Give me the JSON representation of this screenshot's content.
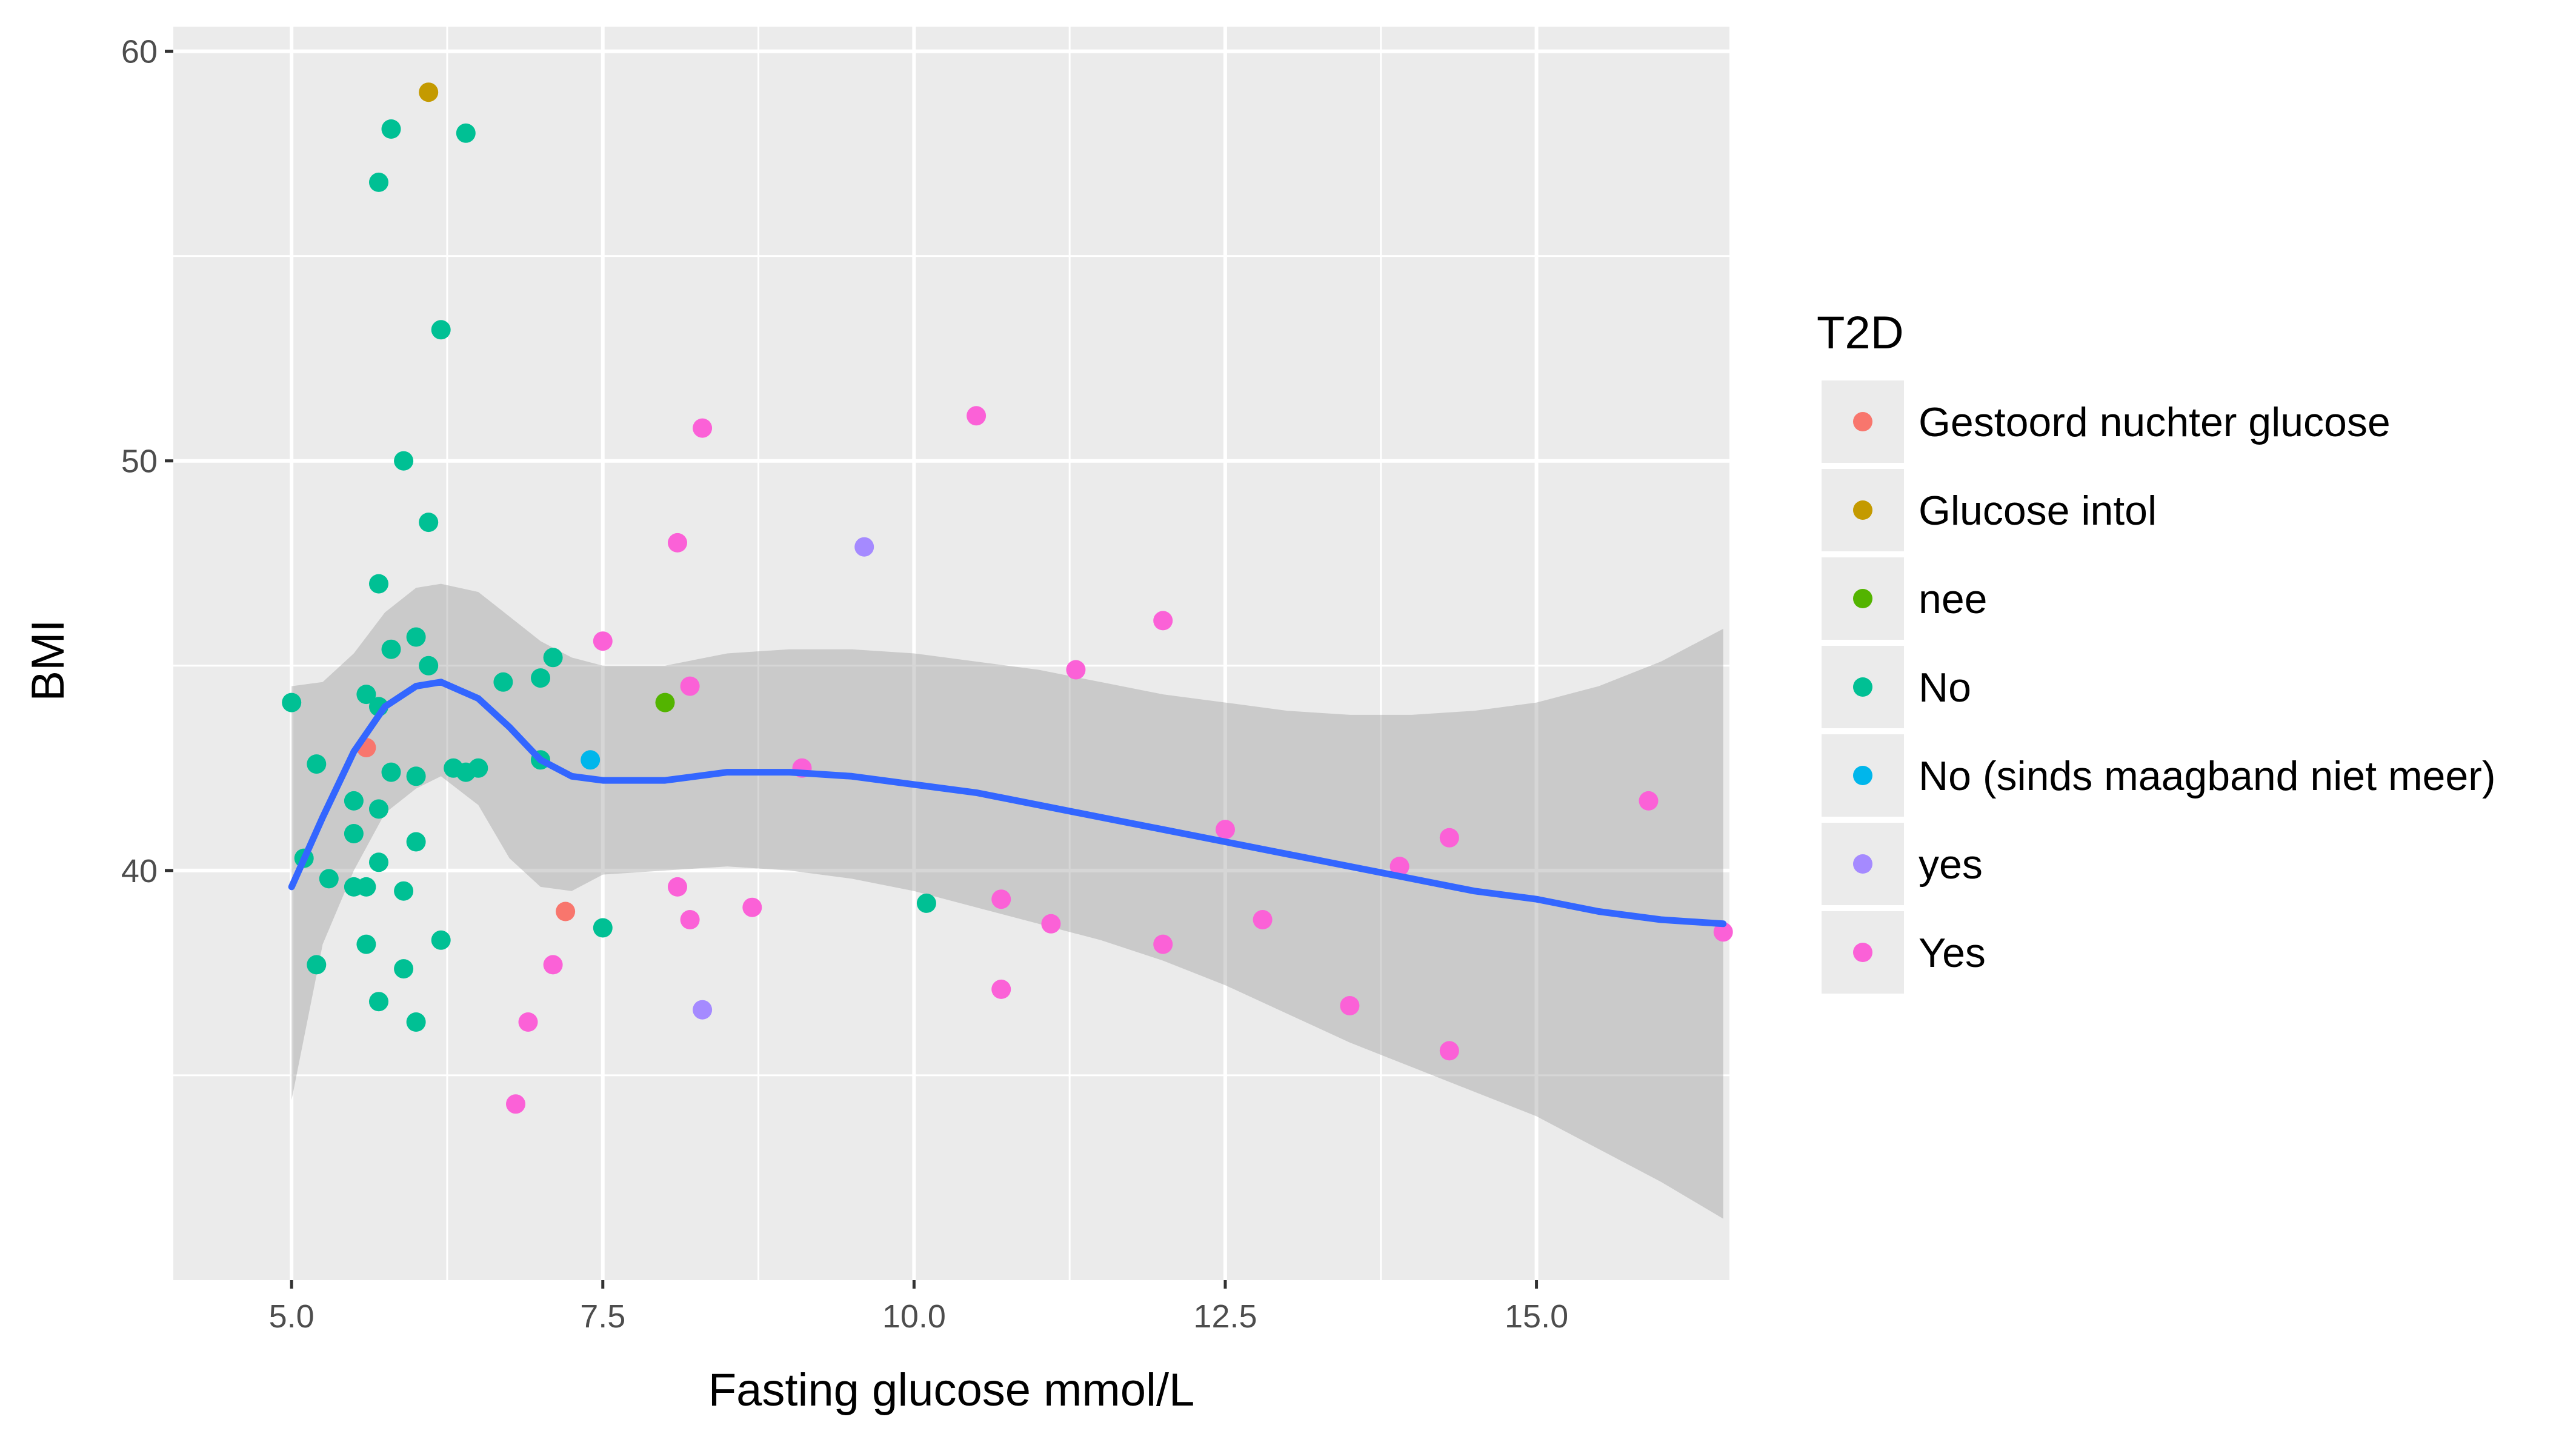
{
  "chart_data": {
    "type": "scatter",
    "xlabel": "Fasting glucose mmol/L",
    "ylabel": "BMI",
    "xlim": [
      4.05,
      16.55
    ],
    "ylim": [
      30.0,
      60.6
    ],
    "x_ticks": [
      5.0,
      7.5,
      10.0,
      12.5,
      15.0
    ],
    "x_tick_labels": [
      "5.0",
      "7.5",
      "10.0",
      "12.5",
      "15.0"
    ],
    "y_ticks": [
      40,
      50,
      60
    ],
    "y_tick_labels": [
      "40",
      "50",
      "60"
    ],
    "grid": true,
    "legend": {
      "title": "T2D",
      "position": "right",
      "entries": [
        {
          "label": "Gestoord nuchter glucose",
          "color": "#F8766D"
        },
        {
          "label": "Glucose intol",
          "color": "#C49A00"
        },
        {
          "label": "nee",
          "color": "#53B400"
        },
        {
          "label": "No",
          "color": "#00C094"
        },
        {
          "label": "No (sinds maagband niet meer)",
          "color": "#00B6EB"
        },
        {
          "label": "yes",
          "color": "#A58AFF"
        },
        {
          "label": "Yes",
          "color": "#FB61D7"
        }
      ]
    },
    "series": [
      {
        "name": "Gestoord nuchter glucose",
        "color": "#F8766D",
        "points": [
          [
            7.2,
            39.0
          ],
          [
            5.6,
            43.0
          ]
        ]
      },
      {
        "name": "Glucose intol",
        "color": "#C49A00",
        "points": [
          [
            6.1,
            59.0
          ]
        ]
      },
      {
        "name": "nee",
        "color": "#53B400",
        "points": [
          [
            8.0,
            44.1
          ]
        ]
      },
      {
        "name": "No",
        "color": "#00C094",
        "points": [
          [
            5.8,
            58.1
          ],
          [
            6.4,
            58.0
          ],
          [
            5.7,
            56.8
          ],
          [
            6.2,
            53.2
          ],
          [
            5.9,
            50.0
          ],
          [
            6.1,
            48.5
          ],
          [
            5.7,
            47.0
          ],
          [
            6.0,
            45.7
          ],
          [
            5.8,
            45.4
          ],
          [
            7.1,
            45.2
          ],
          [
            6.1,
            45.0
          ],
          [
            6.7,
            44.6
          ],
          [
            7.0,
            44.7
          ],
          [
            5.6,
            44.3
          ],
          [
            5.7,
            44.0
          ],
          [
            5.0,
            44.1
          ],
          [
            5.2,
            42.6
          ],
          [
            5.8,
            42.4
          ],
          [
            6.0,
            42.3
          ],
          [
            6.3,
            42.5
          ],
          [
            6.4,
            42.4
          ],
          [
            6.5,
            42.5
          ],
          [
            7.0,
            42.7
          ],
          [
            5.5,
            41.7
          ],
          [
            5.7,
            41.5
          ],
          [
            5.5,
            40.9
          ],
          [
            6.0,
            40.7
          ],
          [
            5.1,
            40.3
          ],
          [
            5.7,
            40.2
          ],
          [
            5.3,
            39.8
          ],
          [
            5.5,
            39.6
          ],
          [
            5.6,
            39.6
          ],
          [
            5.9,
            39.5
          ],
          [
            6.2,
            38.3
          ],
          [
            5.6,
            38.2
          ],
          [
            7.5,
            38.6
          ],
          [
            10.1,
            39.2
          ],
          [
            5.2,
            37.7
          ],
          [
            5.9,
            37.6
          ],
          [
            5.7,
            36.8
          ],
          [
            6.0,
            36.3
          ]
        ]
      },
      {
        "name": "No (sinds maagband niet meer)",
        "color": "#00B6EB",
        "points": [
          [
            7.4,
            42.7
          ]
        ]
      },
      {
        "name": "yes",
        "color": "#A58AFF",
        "points": [
          [
            9.6,
            47.9
          ],
          [
            8.3,
            36.6
          ]
        ]
      },
      {
        "name": "Yes",
        "color": "#FB61D7",
        "points": [
          [
            10.5,
            51.1
          ],
          [
            8.3,
            50.8
          ],
          [
            8.1,
            48.0
          ],
          [
            12.0,
            46.1
          ],
          [
            7.5,
            45.6
          ],
          [
            11.3,
            44.9
          ],
          [
            8.2,
            44.5
          ],
          [
            9.1,
            42.5
          ],
          [
            15.9,
            41.7
          ],
          [
            12.5,
            41.0
          ],
          [
            14.3,
            40.8
          ],
          [
            13.9,
            40.1
          ],
          [
            8.1,
            39.6
          ],
          [
            10.7,
            39.3
          ],
          [
            8.7,
            39.1
          ],
          [
            8.2,
            38.8
          ],
          [
            11.1,
            38.7
          ],
          [
            12.8,
            38.8
          ],
          [
            16.5,
            38.5
          ],
          [
            12.0,
            38.2
          ],
          [
            7.1,
            37.7
          ],
          [
            10.7,
            37.1
          ],
          [
            13.5,
            36.7
          ],
          [
            6.9,
            36.3
          ],
          [
            14.3,
            35.6
          ],
          [
            6.8,
            34.3
          ]
        ]
      }
    ],
    "smooth": {
      "method": "loess",
      "color": "#3366FF",
      "x": [
        5.0,
        5.25,
        5.5,
        5.75,
        6.0,
        6.2,
        6.5,
        6.75,
        7.0,
        7.25,
        7.5,
        8.0,
        8.5,
        9.0,
        9.5,
        10.0,
        10.5,
        11.0,
        11.5,
        12.0,
        12.5,
        13.0,
        13.5,
        14.0,
        14.5,
        15.0,
        15.5,
        16.0,
        16.5
      ],
      "y": [
        39.6,
        41.3,
        42.9,
        44.0,
        44.5,
        44.6,
        44.2,
        43.5,
        42.7,
        42.3,
        42.2,
        42.2,
        42.4,
        42.4,
        42.3,
        42.1,
        41.9,
        41.6,
        41.3,
        41.0,
        40.7,
        40.4,
        40.1,
        39.8,
        39.5,
        39.3,
        39.0,
        38.8,
        38.7
      ],
      "ci_lower": [
        34.4,
        38.2,
        40.0,
        41.4,
        42.0,
        42.3,
        41.6,
        40.3,
        39.6,
        39.5,
        39.9,
        40.0,
        40.1,
        40.0,
        39.8,
        39.5,
        39.1,
        38.7,
        38.3,
        37.8,
        37.2,
        36.5,
        35.8,
        35.2,
        34.6,
        34.0,
        33.2,
        32.4,
        31.5
      ],
      "ci_upper": [
        44.5,
        44.6,
        45.3,
        46.3,
        46.9,
        47.0,
        46.8,
        46.2,
        45.6,
        45.2,
        45.0,
        45.0,
        45.3,
        45.4,
        45.4,
        45.3,
        45.1,
        44.9,
        44.6,
        44.3,
        44.1,
        43.9,
        43.8,
        43.8,
        43.9,
        44.1,
        44.5,
        45.1,
        45.9
      ]
    }
  }
}
